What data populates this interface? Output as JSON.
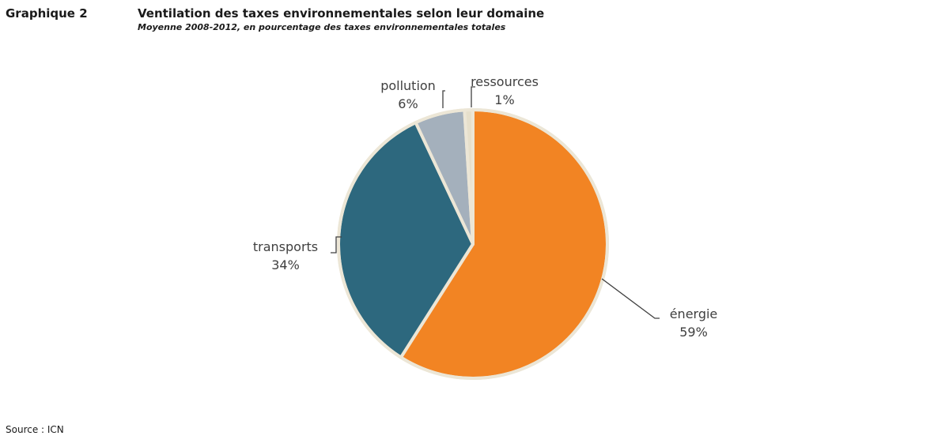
{
  "header": {
    "figure_number": "Graphique 2",
    "title": "Ventilation des taxes environnementales selon leur domaine",
    "subtitle": "Moyenne 2008-2012, en pourcentage des taxes environnementales totales"
  },
  "footer": {
    "source": "Source : ICN"
  },
  "colors": {
    "energie": "#f28423",
    "transports": "#2d687e",
    "pollution": "#a4b0bc",
    "ressources": "#e6dfcb",
    "slice_border": "#ece6d6",
    "leader_line": "#404040"
  },
  "chart_data": {
    "type": "pie",
    "title": "Ventilation des taxes environnementales selon leur domaine",
    "subtitle": "Moyenne 2008-2012, en pourcentage des taxes environnementales totales",
    "unit": "%",
    "slices": [
      {
        "name": "énergie",
        "value": 59,
        "value_label": "59%",
        "color": "#f28423"
      },
      {
        "name": "transports",
        "value": 34,
        "value_label": "34%",
        "color": "#2d687e"
      },
      {
        "name": "pollution",
        "value": 6,
        "value_label": "6%",
        "color": "#a4b0bc"
      },
      {
        "name": "ressources",
        "value": 1,
        "value_label": "1%",
        "color": "#e6dfcb"
      }
    ],
    "legend": "none",
    "labels": "outside-with-leader-lines"
  }
}
